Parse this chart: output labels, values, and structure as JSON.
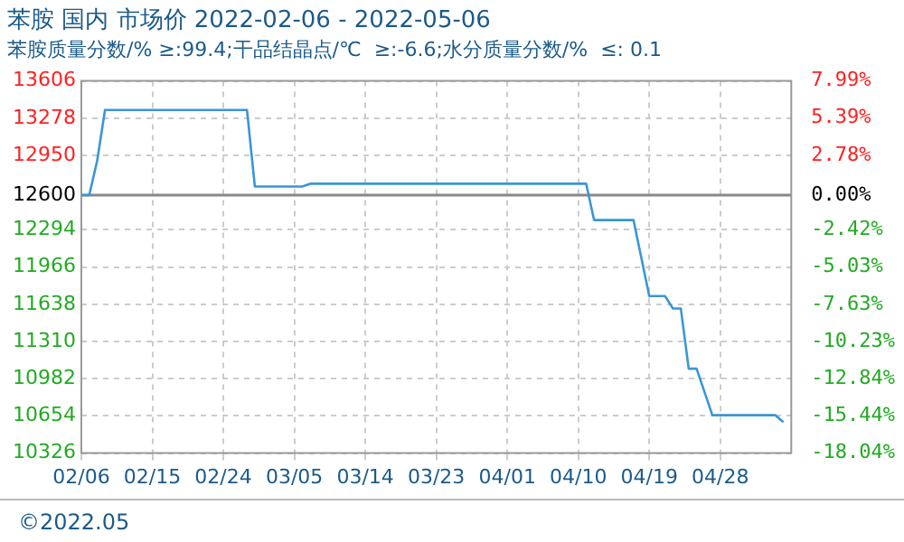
{
  "chart_data": {
    "type": "line",
    "title": "苯胺 国内 市场价 2022-02-06 - 2022-05-06",
    "subtitle": "苯胺质量分数/% ≥:99.4;干品结晶点/℃  ≥:-6.6;水分质量分数/%  ≤: 0.1",
    "x": [
      "2022-02-06",
      "2022-02-07",
      "2022-02-08",
      "2022-02-09",
      "2022-02-27",
      "2022-02-28",
      "2022-03-06",
      "2022-03-07",
      "2022-04-11",
      "2022-04-12",
      "2022-04-17",
      "2022-04-19",
      "2022-04-21",
      "2022-04-22",
      "2022-04-23",
      "2022-04-24",
      "2022-04-25",
      "2022-04-27",
      "2022-05-05",
      "2022-05-06"
    ],
    "series": [
      {
        "color": "#3a96d6",
        "values": [
          12600,
          12600,
          12900,
          13350,
          13350,
          12675,
          12675,
          12700,
          12700,
          12380,
          12380,
          11710,
          11710,
          11600,
          11600,
          11070,
          11070,
          10660,
          10660,
          10600
        ]
      }
    ],
    "xlim": [
      "2022-02-06",
      "2022-05-07"
    ],
    "xticks": [
      {
        "value": "2022-02-06",
        "label": "02/06"
      },
      {
        "value": "2022-02-15",
        "label": "02/15"
      },
      {
        "value": "2022-02-24",
        "label": "02/24"
      },
      {
        "value": "2022-03-05",
        "label": "03/05"
      },
      {
        "value": "2022-03-14",
        "label": "03/14"
      },
      {
        "value": "2022-03-23",
        "label": "03/23"
      },
      {
        "value": "2022-04-01",
        "label": "04/01"
      },
      {
        "value": "2022-04-10",
        "label": "04/10"
      },
      {
        "value": "2022-04-19",
        "label": "04/19"
      },
      {
        "value": "2022-04-28",
        "label": "04/28"
      }
    ],
    "ylim": [
      10326,
      13606
    ],
    "yticks": [
      10326,
      10654,
      10982,
      11310,
      11638,
      11966,
      12294,
      12600,
      12950,
      13278,
      13606
    ],
    "y2lim": [
      -18.04,
      7.99
    ],
    "y2ticks": [
      {
        "value": -18.04,
        "label": "-18.04%"
      },
      {
        "value": -15.44,
        "label": "-15.44%"
      },
      {
        "value": -12.84,
        "label": "-12.84%"
      },
      {
        "value": -10.23,
        "label": "-10.23%"
      },
      {
        "value": -7.63,
        "label": "-7.63%"
      },
      {
        "value": -5.03,
        "label": "-5.03%"
      },
      {
        "value": -2.42,
        "label": "-2.42%"
      },
      {
        "value": 0,
        "label": "0.00%"
      },
      {
        "value": 2.78,
        "label": "2.78%"
      },
      {
        "value": 5.39,
        "label": "5.39%"
      },
      {
        "value": 7.99,
        "label": "7.99%"
      }
    ],
    "ref_lines": [
      {
        "axis": "y",
        "value": 12600,
        "color": "#888888"
      }
    ],
    "annotations": [
      "©2022.05"
    ],
    "grid": true,
    "legend": false,
    "marker": "none",
    "line_style": "solid"
  }
}
